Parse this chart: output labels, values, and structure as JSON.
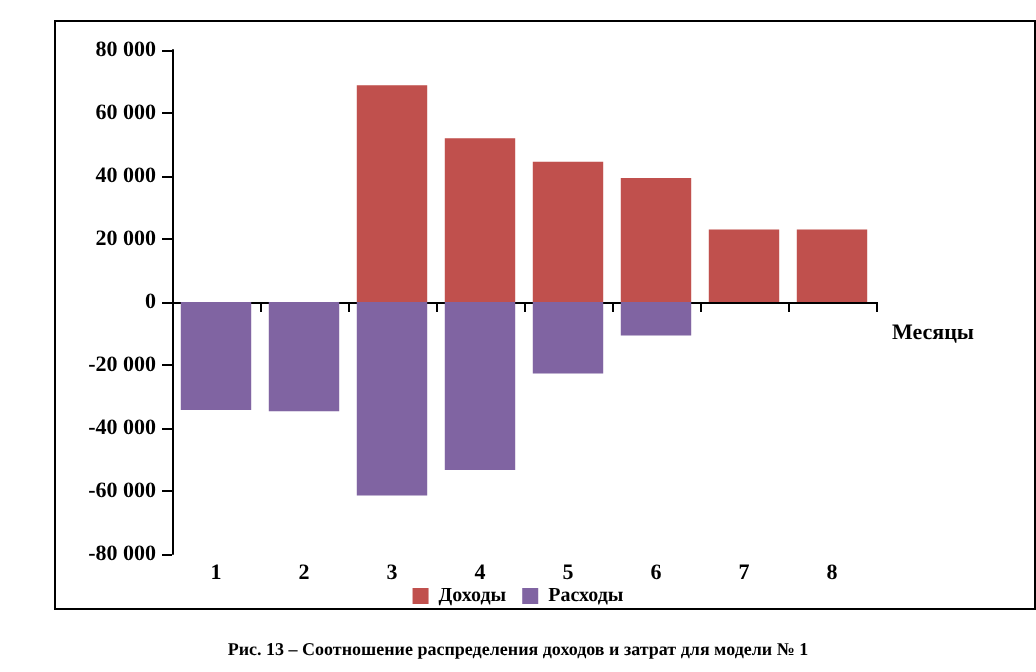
{
  "chart_data": {
    "type": "bar",
    "title": "Рис. 13 – Соотношение распределения доходов и затрат для модели № 1",
    "xlabel": "Месяцы",
    "categories": [
      "1",
      "2",
      "3",
      "4",
      "5",
      "6",
      "7",
      "8"
    ],
    "series": [
      {
        "name": "Доходы",
        "color": "#c0504d",
        "values": [
          0,
          0,
          68800,
          52000,
          44500,
          39400,
          23000,
          23000
        ]
      },
      {
        "name": "Расходы",
        "color": "#8064a2",
        "values": [
          -34300,
          -34700,
          -61400,
          -53300,
          -22700,
          -10600,
          0,
          0
        ]
      }
    ],
    "ylim": [
      -80000,
      80000
    ],
    "yticks": [
      {
        "value": -80000,
        "label": "-80 000"
      },
      {
        "value": -60000,
        "label": "-60 000"
      },
      {
        "value": -40000,
        "label": "-40 000"
      },
      {
        "value": -20000,
        "label": "-20 000"
      },
      0,
      {
        "value": 20000,
        "label": "20 000"
      },
      {
        "value": 40000,
        "label": "40 000"
      },
      {
        "value": 60000,
        "label": "60 000"
      },
      {
        "value": 80000,
        "label": "80 000"
      }
    ],
    "stacked": true,
    "legend": "bottom"
  }
}
